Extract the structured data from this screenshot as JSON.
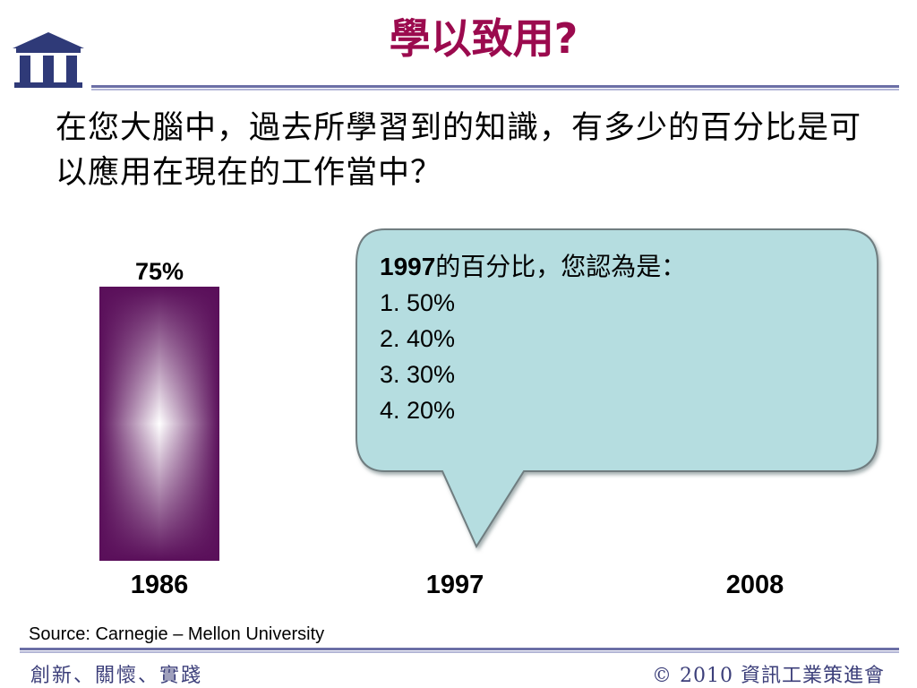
{
  "title": "學以致用?",
  "question": "在您大腦中，過去所學習到的知識，有多少的百分比是可以應用在現在的工作當中？",
  "bubble": {
    "heading_year": "1997",
    "heading_rest": "的百分比，您認為是：",
    "options": [
      "1.  50%",
      "2.  40%",
      "3.  30%",
      "4.  20%"
    ]
  },
  "source": "Source: Carnegie – Mellon University",
  "footer": {
    "left": "創新、關懷、實踐",
    "right": "© 2010 資訊工業策進會"
  },
  "colors": {
    "title": "#9b0a4e",
    "bar_dark": "#5a0f5a",
    "bar_light": "#ffffff",
    "bubble_fill": "#b5dde0",
    "rule": "#6b6fa6",
    "footer": "#3c3f7a"
  },
  "chart_data": {
    "type": "bar",
    "categories": [
      "1986",
      "1997",
      "2008"
    ],
    "values": [
      75,
      null,
      null
    ],
    "value_labels": [
      "75%",
      "",
      ""
    ],
    "ylim": [
      0,
      100
    ],
    "grid": false
  }
}
